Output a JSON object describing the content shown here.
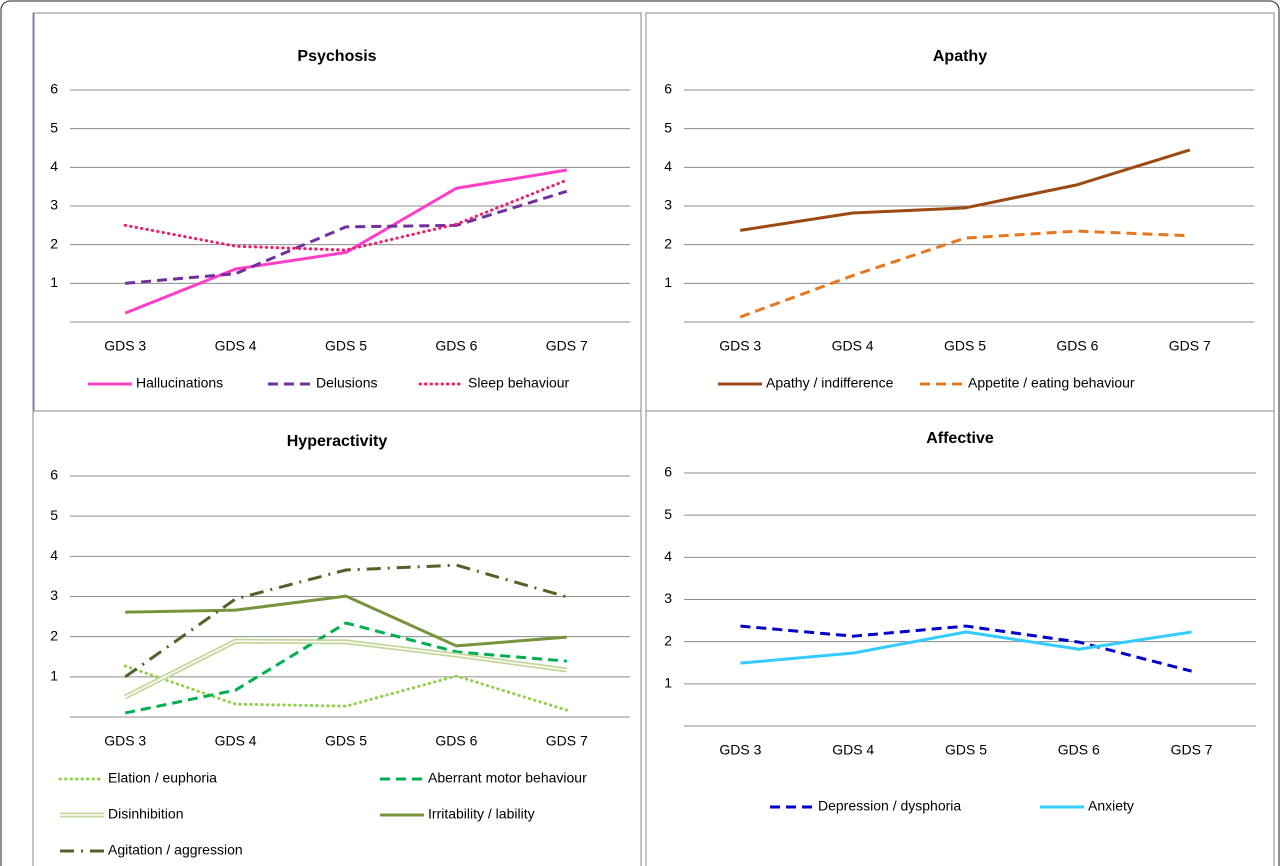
{
  "chart_data": [
    {
      "type": "line",
      "title": "Psychosis",
      "categories": [
        "GDS 3",
        "GDS 4",
        "GDS 5",
        "GDS 6",
        "GDS 7"
      ],
      "ylim": [
        0,
        6
      ],
      "yticks": [
        1,
        2,
        3,
        4,
        5,
        6
      ],
      "grid": true,
      "series": [
        {
          "name": "Hallucinations",
          "color": "#ff3fc8",
          "style": "solid",
          "values": [
            0.23,
            1.37,
            1.8,
            3.46,
            3.93
          ]
        },
        {
          "name": "Delusions",
          "color": "#7030a0",
          "style": "dashed",
          "values": [
            1.0,
            1.25,
            2.46,
            2.5,
            3.38
          ]
        },
        {
          "name": "Sleep behaviour",
          "color": "#e6236e",
          "style": "dotted",
          "values": [
            2.5,
            1.96,
            1.86,
            2.53,
            3.67
          ]
        }
      ]
    },
    {
      "type": "line",
      "title": "Apathy",
      "categories": [
        "GDS 3",
        "GDS 4",
        "GDS 5",
        "GDS 6",
        "GDS 7"
      ],
      "ylim": [
        0,
        6
      ],
      "yticks": [
        1,
        2,
        3,
        4,
        5,
        6
      ],
      "grid": true,
      "series": [
        {
          "name": "Apathy / indifference",
          "color": "#9c4a12",
          "style": "solid",
          "values": [
            2.37,
            2.82,
            2.95,
            3.55,
            4.45
          ]
        },
        {
          "name": "Appetite / eating behaviour",
          "color": "#e87722",
          "style": "dashed",
          "values": [
            0.13,
            1.2,
            2.17,
            2.35,
            2.23
          ]
        }
      ]
    },
    {
      "type": "line",
      "title": "Hyperactivity",
      "categories": [
        "GDS 3",
        "GDS 4",
        "GDS 5",
        "GDS 6",
        "GDS 7"
      ],
      "ylim": [
        0,
        6
      ],
      "yticks": [
        1,
        2,
        3,
        4,
        5,
        6
      ],
      "grid": true,
      "series": [
        {
          "name": "Elation / euphoria",
          "color": "#92d050",
          "style": "dotted",
          "values": [
            1.27,
            0.32,
            0.27,
            1.02,
            0.17
          ]
        },
        {
          "name": "Aberrant motor behaviour",
          "color": "#00b050",
          "style": "dashed",
          "values": [
            0.1,
            0.67,
            2.34,
            1.62,
            1.39
          ]
        },
        {
          "name": "Disinhibition",
          "color": "#c4d79b",
          "style": "double",
          "values": [
            0.5,
            1.89,
            1.87,
            1.54,
            1.17
          ]
        },
        {
          "name": "Irritability / lability",
          "color": "#77933c",
          "style": "solid",
          "values": [
            2.61,
            2.66,
            3.01,
            1.77,
            1.99
          ]
        },
        {
          "name": "Agitation / aggression",
          "color": "#4f6228",
          "style": "dash-dot",
          "values": [
            1.0,
            2.94,
            3.66,
            3.78,
            2.99
          ]
        }
      ]
    },
    {
      "type": "line",
      "title": "Affective",
      "categories": [
        "GDS 3",
        "GDS 4",
        "GDS 5",
        "GDS 6",
        "GDS 7"
      ],
      "ylim": [
        0,
        6
      ],
      "yticks": [
        1,
        2,
        3,
        4,
        5,
        6
      ],
      "grid": true,
      "series": [
        {
          "name": "Depression / dysphoria",
          "color": "#0000cc",
          "style": "dashed",
          "values": [
            2.37,
            2.13,
            2.37,
            1.99,
            1.3
          ]
        },
        {
          "name": "Anxiety",
          "color": "#33ccff",
          "style": "solid",
          "values": [
            1.49,
            1.73,
            2.23,
            1.82,
            2.23
          ]
        }
      ]
    }
  ]
}
